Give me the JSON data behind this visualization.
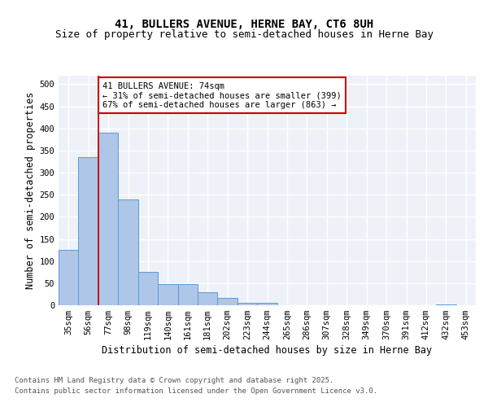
{
  "title_line1": "41, BULLERS AVENUE, HERNE BAY, CT6 8UH",
  "title_line2": "Size of property relative to semi-detached houses in Herne Bay",
  "xlabel": "Distribution of semi-detached houses by size in Herne Bay",
  "ylabel": "Number of semi-detached properties",
  "categories": [
    "35sqm",
    "56sqm",
    "77sqm",
    "98sqm",
    "119sqm",
    "140sqm",
    "161sqm",
    "181sqm",
    "202sqm",
    "223sqm",
    "244sqm",
    "265sqm",
    "286sqm",
    "307sqm",
    "328sqm",
    "349sqm",
    "370sqm",
    "391sqm",
    "412sqm",
    "432sqm",
    "453sqm"
  ],
  "values": [
    125,
    335,
    390,
    240,
    75,
    48,
    47,
    30,
    17,
    6,
    5,
    0,
    0,
    0,
    0,
    0,
    0,
    0,
    0,
    1,
    0
  ],
  "bar_color": "#aec6e8",
  "bar_edge_color": "#5b9bd5",
  "vline_pos": 1.5,
  "annotation_text": "41 BULLERS AVENUE: 74sqm\n← 31% of semi-detached houses are smaller (399)\n67% of semi-detached houses are larger (863) →",
  "footer_line1": "Contains HM Land Registry data © Crown copyright and database right 2025.",
  "footer_line2": "Contains public sector information licensed under the Open Government Licence v3.0.",
  "ylim": [
    0,
    520
  ],
  "yticks": [
    0,
    50,
    100,
    150,
    200,
    250,
    300,
    350,
    400,
    450,
    500
  ],
  "background_color": "#eef2f8",
  "grid_color": "#ffffff",
  "annotation_box_color": "#ffffff",
  "annotation_box_edge": "#cc0000",
  "vline_color": "#cc0000",
  "title_fontsize": 10,
  "subtitle_fontsize": 9,
  "axis_label_fontsize": 8.5,
  "tick_fontsize": 7.5,
  "annotation_fontsize": 7.5,
  "footer_fontsize": 6.5
}
